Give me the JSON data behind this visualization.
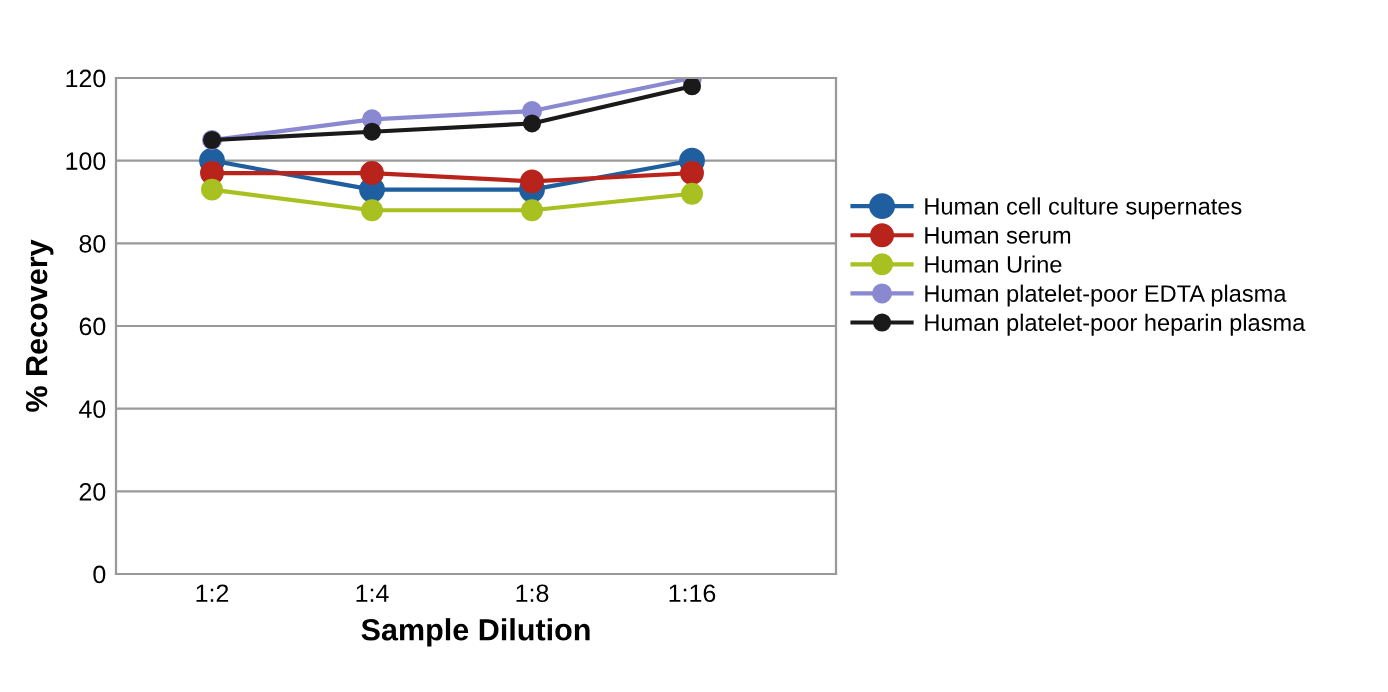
{
  "chart_data": {
    "type": "line",
    "xlabel": "Sample Dilution",
    "ylabel": "% Recovery",
    "categories": [
      "1:2",
      "1:4",
      "1:8",
      "1:16"
    ],
    "ylim": [
      0,
      120
    ],
    "yticks": [
      0,
      20,
      40,
      60,
      80,
      100,
      120
    ],
    "grid": "y",
    "legend": "right",
    "marker": "circle",
    "line_style": "solid",
    "series": [
      {
        "name": "Human cell culture supernates",
        "color": "#1f5fa0",
        "values": [
          100,
          93,
          93,
          100
        ]
      },
      {
        "name": "Human serum",
        "color": "#b8231c",
        "values": [
          97,
          97,
          95,
          97
        ]
      },
      {
        "name": "Human Urine",
        "color": "#a8c020",
        "values": [
          93,
          88,
          88,
          92
        ]
      },
      {
        "name": "Human platelet-poor EDTA plasma",
        "color": "#8a88d0",
        "values": [
          105,
          110,
          112,
          120
        ]
      },
      {
        "name": "Human platelet-poor heparin plasma",
        "color": "#1a1a1a",
        "values": [
          105,
          107,
          109,
          118
        ]
      }
    ]
  }
}
